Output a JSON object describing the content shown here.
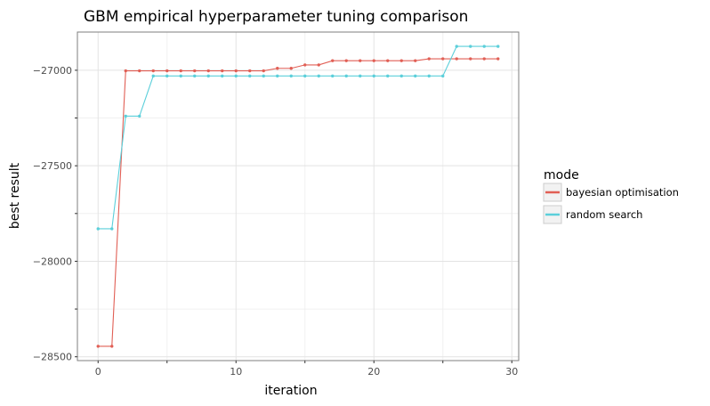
{
  "chart_data": {
    "type": "line",
    "title": "GBM empirical hyperparameter tuning comparison",
    "xlabel": "iteration",
    "ylabel": "best result",
    "xlim": [
      -1.5,
      30.5
    ],
    "ylim": [
      -28520,
      -26800
    ],
    "x_ticks": [
      0,
      10,
      20,
      30
    ],
    "x_tick_labels": [
      "0",
      "10",
      "20",
      "30"
    ],
    "y_ticks": [
      -28500,
      -28000,
      -27500,
      -27000
    ],
    "y_tick_labels": [
      "−28500",
      "−28000",
      "−27500",
      "−27000"
    ],
    "grid": true,
    "legend": {
      "title": "mode",
      "position": "right"
    },
    "x": [
      0,
      1,
      2,
      3,
      4,
      5,
      6,
      7,
      8,
      9,
      10,
      11,
      12,
      13,
      14,
      15,
      16,
      17,
      18,
      19,
      20,
      21,
      22,
      23,
      24,
      25,
      26,
      27,
      28,
      29
    ],
    "series": [
      {
        "name": "bayesian optimisation",
        "color": "#e15f55",
        "values": [
          -28445,
          -28445,
          -27003,
          -27003,
          -27003,
          -27003,
          -27003,
          -27003,
          -27003,
          -27003,
          -27003,
          -27003,
          -27003,
          -26990,
          -26990,
          -26972,
          -26972,
          -26950,
          -26950,
          -26950,
          -26950,
          -26950,
          -26950,
          -26950,
          -26940,
          -26940,
          -26940,
          -26940,
          -26940,
          -26940
        ]
      },
      {
        "name": "random search",
        "color": "#5bcfda",
        "values": [
          -27830,
          -27830,
          -27240,
          -27240,
          -27030,
          -27030,
          -27030,
          -27030,
          -27030,
          -27030,
          -27030,
          -27030,
          -27030,
          -27030,
          -27030,
          -27030,
          -27030,
          -27030,
          -27030,
          -27030,
          -27030,
          -27030,
          -27030,
          -27030,
          -27030,
          -27030,
          -26875,
          -26875,
          -26875,
          -26875
        ]
      }
    ]
  }
}
